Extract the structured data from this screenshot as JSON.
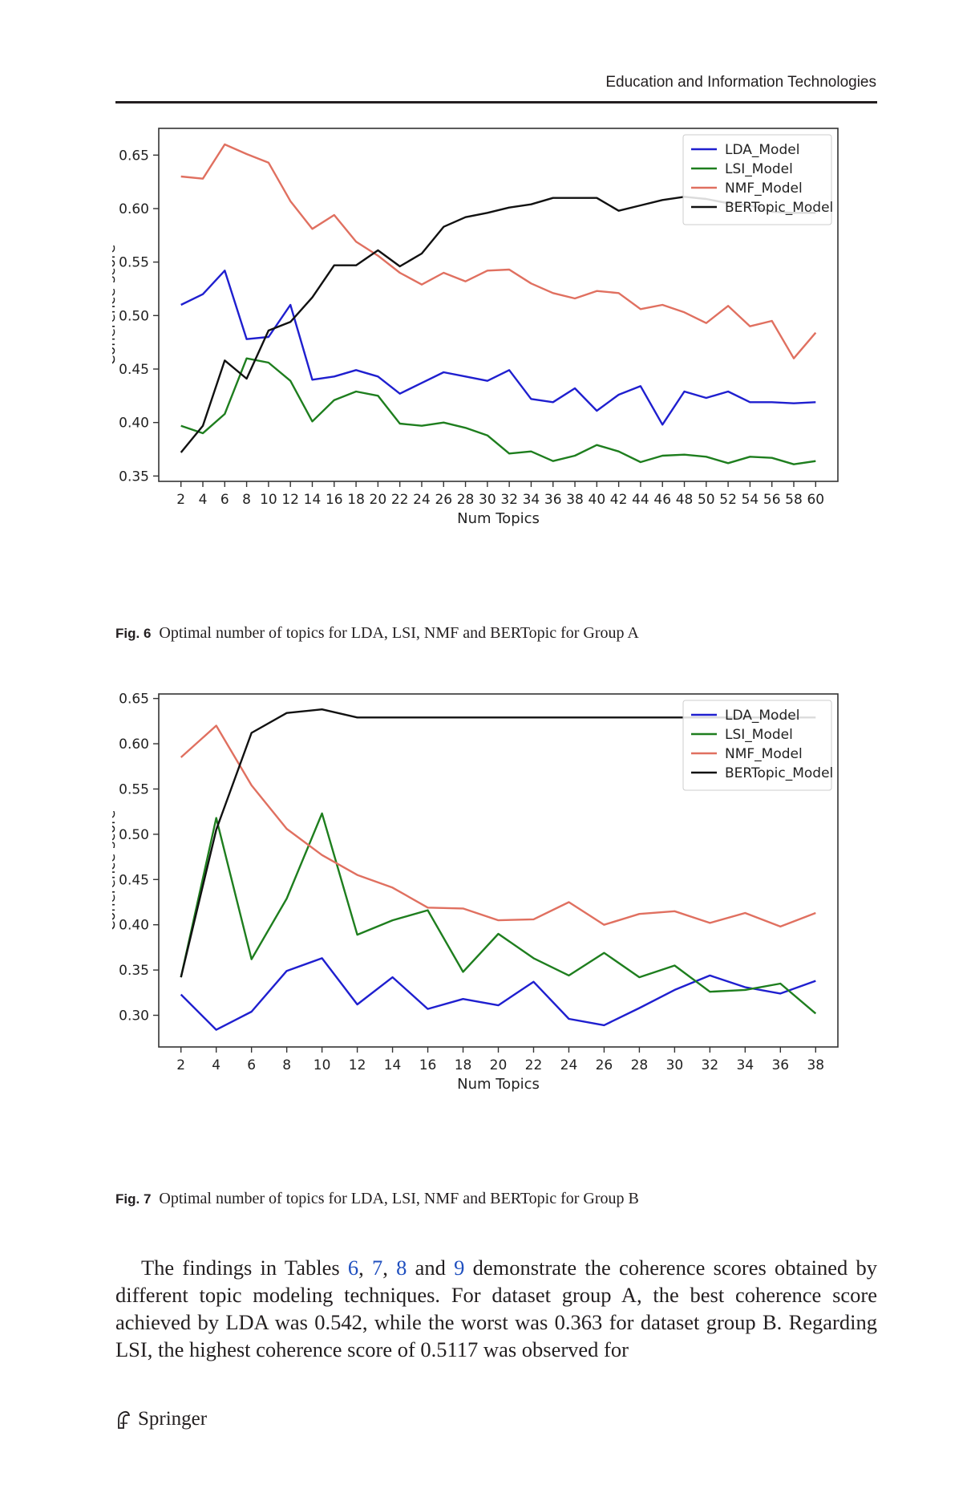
{
  "header": {
    "journal": "Education and Information Technologies"
  },
  "figures": [
    {
      "label": "Fig. 6",
      "caption": "Optimal number of topics for LDA, LSI, NMF and BERTopic for Group A"
    },
    {
      "label": "Fig. 7",
      "caption": "Optimal number of topics for LDA, LSI, NMF and BERTopic for Group B"
    }
  ],
  "chart_data": [
    {
      "type": "line",
      "xlabel": "Num Topics",
      "ylabel": "Coherence score",
      "x": [
        2,
        4,
        6,
        8,
        10,
        12,
        14,
        16,
        18,
        20,
        22,
        24,
        26,
        28,
        30,
        32,
        34,
        36,
        38,
        40,
        42,
        44,
        46,
        48,
        50,
        52,
        54,
        56,
        58,
        60
      ],
      "xticks": [
        "2",
        "4",
        "6",
        "8",
        "10",
        "12",
        "14",
        "16",
        "18",
        "20",
        "22",
        "24",
        "26",
        "28",
        "30",
        "32",
        "34",
        "36",
        "38",
        "40",
        "42",
        "44",
        "46",
        "48",
        "50",
        "52",
        "54",
        "56",
        "58",
        "60"
      ],
      "ylim": [
        0.345,
        0.675
      ],
      "yticks": [
        "0.35",
        "0.40",
        "0.45",
        "0.50",
        "0.55",
        "0.60",
        "0.65"
      ],
      "yticks_values": [
        0.35,
        0.4,
        0.45,
        0.5,
        0.55,
        0.6,
        0.65
      ],
      "legend_position": "top-right",
      "grid": false,
      "series": [
        {
          "name": "LDA_Model",
          "color": "#1f1fcf",
          "values": [
            0.51,
            0.52,
            0.542,
            0.478,
            0.48,
            0.51,
            0.44,
            0.443,
            0.449,
            0.443,
            0.427,
            0.437,
            0.447,
            0.443,
            0.439,
            0.449,
            0.422,
            0.419,
            0.432,
            0.411,
            0.426,
            0.434,
            0.398,
            0.429,
            0.423,
            0.429,
            0.419,
            0.419,
            0.418,
            0.419
          ]
        },
        {
          "name": "LSI_Model",
          "color": "#1e7e1e",
          "values": [
            0.397,
            0.39,
            0.408,
            0.46,
            0.456,
            0.439,
            0.401,
            0.421,
            0.429,
            0.425,
            0.399,
            0.397,
            0.4,
            0.395,
            0.388,
            0.371,
            0.373,
            0.364,
            0.369,
            0.379,
            0.373,
            0.363,
            0.369,
            0.37,
            0.368,
            0.362,
            0.368,
            0.367,
            0.361,
            0.364
          ]
        },
        {
          "name": "NMF_Model",
          "color": "#e07060",
          "values": [
            0.63,
            0.628,
            0.66,
            0.651,
            0.643,
            0.607,
            0.581,
            0.594,
            0.569,
            0.556,
            0.54,
            0.529,
            0.54,
            0.532,
            0.542,
            0.543,
            0.53,
            0.521,
            0.516,
            0.523,
            0.521,
            0.506,
            0.51,
            0.503,
            0.493,
            0.509,
            0.49,
            0.495,
            0.46,
            0.484
          ]
        },
        {
          "name": "BERTopic_Model",
          "color": "#111111",
          "values": [
            0.372,
            0.397,
            0.458,
            0.441,
            0.486,
            0.494,
            0.517,
            0.547,
            0.547,
            0.561,
            0.546,
            0.558,
            0.583,
            0.592,
            0.596,
            0.601,
            0.604,
            0.61,
            0.61,
            0.61,
            0.598,
            0.603,
            0.608,
            0.611,
            0.609,
            0.605,
            0.603,
            0.597,
            0.596,
            0.596
          ]
        }
      ]
    },
    {
      "type": "line",
      "xlabel": "Num Topics",
      "ylabel": "Coherence score",
      "x": [
        2,
        4,
        6,
        8,
        10,
        12,
        14,
        16,
        18,
        20,
        22,
        24,
        26,
        28,
        30,
        32,
        34,
        36,
        38
      ],
      "xticks": [
        "2",
        "4",
        "6",
        "8",
        "10",
        "12",
        "14",
        "16",
        "18",
        "20",
        "22",
        "24",
        "26",
        "28",
        "30",
        "32",
        "34",
        "36",
        "38"
      ],
      "ylim": [
        0.265,
        0.655
      ],
      "yticks": [
        "0.30",
        "0.35",
        "0.40",
        "0.45",
        "0.50",
        "0.55",
        "0.60",
        "0.65"
      ],
      "yticks_values": [
        0.3,
        0.35,
        0.4,
        0.45,
        0.5,
        0.55,
        0.6,
        0.65
      ],
      "legend_position": "top-right",
      "grid": false,
      "series": [
        {
          "name": "LDA_Model",
          "color": "#1f1fcf",
          "values": [
            0.323,
            0.284,
            0.304,
            0.349,
            0.363,
            0.312,
            0.342,
            0.307,
            0.318,
            0.311,
            0.337,
            0.296,
            0.289,
            0.308,
            0.328,
            0.344,
            0.331,
            0.324,
            0.338
          ]
        },
        {
          "name": "LSI_Model",
          "color": "#1e7e1e",
          "values": [
            0.342,
            0.518,
            0.362,
            0.429,
            0.523,
            0.389,
            0.405,
            0.416,
            0.348,
            0.39,
            0.363,
            0.344,
            0.369,
            0.342,
            0.355,
            0.326,
            0.328,
            0.335,
            0.302
          ]
        },
        {
          "name": "NMF_Model",
          "color": "#e07060",
          "values": [
            0.585,
            0.62,
            0.554,
            0.506,
            0.477,
            0.455,
            0.441,
            0.419,
            0.418,
            0.405,
            0.406,
            0.425,
            0.4,
            0.412,
            0.415,
            0.402,
            0.413,
            0.398,
            0.413
          ]
        },
        {
          "name": "BERTopic_Model",
          "color": "#111111",
          "values": [
            0.342,
            0.505,
            0.612,
            0.634,
            0.638,
            0.629,
            0.629,
            0.629,
            0.629,
            0.629,
            0.629,
            0.629,
            0.629,
            0.629,
            0.629,
            0.629,
            0.629,
            0.629,
            0.629
          ]
        }
      ]
    }
  ],
  "body": {
    "part1": "The findings in Tables ",
    "ref6": "6",
    "sep1": ", ",
    "ref7": "7",
    "sep2": ", ",
    "ref8": "8",
    "sep3": " and ",
    "ref9": "9",
    "part2": " demonstrate the coherence scores obtained by different topic modeling techniques. For dataset group A, the best coherence score achieved by LDA was 0.542, while the worst was 0.363 for dataset group B. Regarding LSI, the highest coherence score of 0.5117 was observed for"
  },
  "footer": {
    "publisher": "Springer"
  }
}
